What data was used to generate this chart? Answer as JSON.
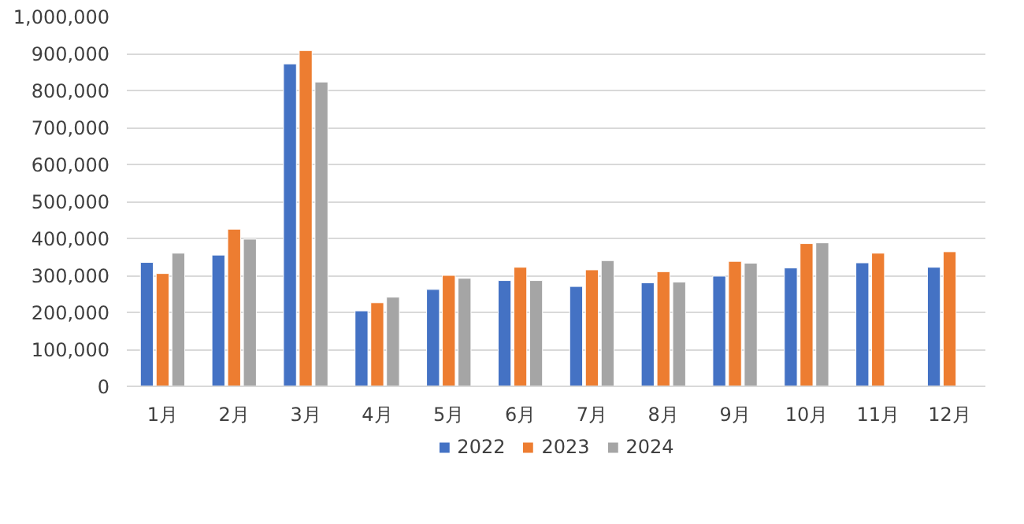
{
  "chart_data": {
    "type": "bar",
    "categories": [
      "1月",
      "2月",
      "3月",
      "4月",
      "5月",
      "6月",
      "7月",
      "8月",
      "9月",
      "10月",
      "11月",
      "12月"
    ],
    "series": [
      {
        "name": "2022",
        "color": "#4472c4",
        "values": [
          335000,
          355000,
          872000,
          204000,
          262000,
          286000,
          270000,
          280000,
          298000,
          320000,
          334000,
          322000
        ]
      },
      {
        "name": "2023",
        "color": "#ed7d31",
        "values": [
          305000,
          425000,
          908000,
          226000,
          300000,
          322000,
          315000,
          310000,
          338000,
          386000,
          360000,
          364000
        ]
      },
      {
        "name": "2024",
        "color": "#a5a5a5",
        "values": [
          360000,
          398000,
          823000,
          241000,
          292000,
          286000,
          340000,
          282000,
          333000,
          388000,
          null,
          null
        ]
      }
    ],
    "ylim": [
      0,
      1000000
    ],
    "yticks": [
      {
        "value": 0,
        "label": "0"
      },
      {
        "value": 100000,
        "label": "100,000"
      },
      {
        "value": 200000,
        "label": "200,000"
      },
      {
        "value": 300000,
        "label": "300,000"
      },
      {
        "value": 400000,
        "label": "400,000"
      },
      {
        "value": 500000,
        "label": "500,000"
      },
      {
        "value": 600000,
        "label": "600,000"
      },
      {
        "value": 700000,
        "label": "700,000"
      },
      {
        "value": 800000,
        "label": "800,000"
      },
      {
        "value": 900000,
        "label": "900,000"
      },
      {
        "value": 1000000,
        "label": "1,000,000"
      }
    ],
    "grid": "y",
    "legend": "bottom"
  }
}
